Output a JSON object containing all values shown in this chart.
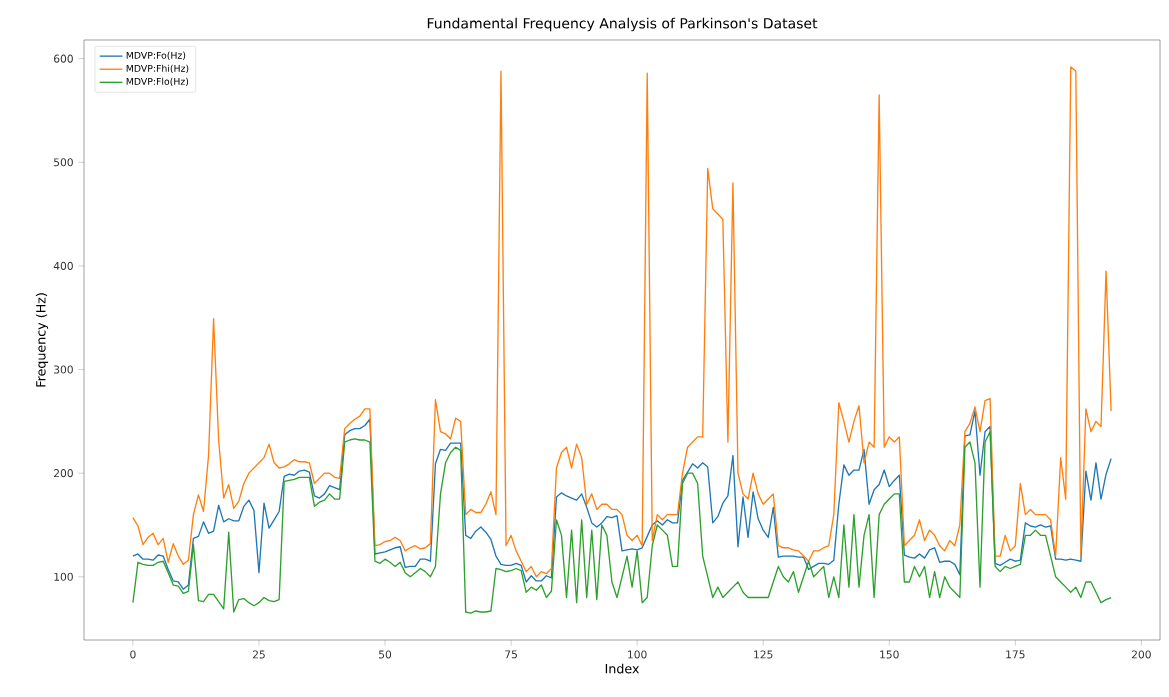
{
  "chart_data": {
    "type": "line",
    "title": "Fundamental Frequency Analysis of Parkinson's Dataset",
    "xlabel": "Index",
    "ylabel": "Frequency (Hz)",
    "x": [
      0,
      1,
      2,
      3,
      4,
      5,
      6,
      7,
      8,
      9,
      10,
      11,
      12,
      13,
      14,
      15,
      16,
      17,
      18,
      19,
      20,
      21,
      22,
      23,
      24,
      25,
      26,
      27,
      28,
      29,
      30,
      31,
      32,
      33,
      34,
      35,
      36,
      37,
      38,
      39,
      40,
      41,
      42,
      43,
      44,
      45,
      46,
      47,
      48,
      49,
      50,
      51,
      52,
      53,
      54,
      55,
      56,
      57,
      58,
      59,
      60,
      61,
      62,
      63,
      64,
      65,
      66,
      67,
      68,
      69,
      70,
      71,
      72,
      73,
      74,
      75,
      76,
      77,
      78,
      79,
      80,
      81,
      82,
      83,
      84,
      85,
      86,
      87,
      88,
      89,
      90,
      91,
      92,
      93,
      94,
      95,
      96,
      97,
      98,
      99,
      100,
      101,
      102,
      103,
      104,
      105,
      106,
      107,
      108,
      109,
      110,
      111,
      112,
      113,
      114,
      115,
      116,
      117,
      118,
      119,
      120,
      121,
      122,
      123,
      124,
      125,
      126,
      127,
      128,
      129,
      130,
      131,
      132,
      133,
      134,
      135,
      136,
      137,
      138,
      139,
      140,
      141,
      142,
      143,
      144,
      145,
      146,
      147,
      148,
      149,
      150,
      151,
      152,
      153,
      154,
      155,
      156,
      157,
      158,
      159,
      160,
      161,
      162,
      163,
      164,
      165,
      166,
      167,
      168,
      169,
      170,
      171,
      172,
      173,
      174,
      175,
      176,
      177,
      178,
      179,
      180,
      181,
      182,
      183,
      184,
      185,
      186,
      187,
      188,
      189,
      190,
      191,
      192,
      193,
      194
    ],
    "series": [
      {
        "name": "MDVP:Fo(Hz)",
        "color": "#1f77b4",
        "values": [
          120,
          122,
          117,
          117,
          116,
          121,
          120,
          107,
          96,
          95,
          88,
          92,
          137,
          139,
          153,
          142,
          144,
          169,
          153,
          156,
          154,
          154,
          168,
          174,
          164,
          104,
          171,
          147,
          155,
          163,
          197,
          199,
          198,
          202,
          203,
          201,
          178,
          176,
          180,
          188,
          186,
          184,
          237,
          241,
          243,
          243,
          246,
          252,
          122,
          123,
          124,
          126,
          128,
          129,
          109,
          110,
          110,
          117,
          117,
          115,
          209,
          223,
          222,
          229,
          229,
          229,
          140,
          137,
          144,
          148,
          143,
          136,
          120,
          112,
          111,
          111,
          113,
          111,
          95,
          101,
          96,
          96,
          101,
          99,
          177,
          181,
          178,
          176,
          174,
          180,
          167,
          152,
          148,
          152,
          158,
          157,
          159,
          125,
          126,
          127,
          126,
          128,
          139,
          150,
          154,
          150,
          155,
          152,
          152,
          193,
          201,
          209,
          205,
          210,
          206,
          152,
          158,
          171,
          178,
          217,
          129,
          177,
          138,
          182,
          156,
          145,
          138,
          167,
          119,
          120,
          120,
          120,
          119,
          119,
          107,
          110,
          113,
          113,
          112,
          116,
          170,
          208,
          198,
          203,
          203,
          223,
          170,
          184,
          189,
          203,
          187,
          193,
          198,
          121,
          119,
          118,
          122,
          118,
          126,
          128,
          114,
          115,
          115,
          112,
          102,
          236,
          237,
          260,
          198,
          240,
          245,
          113,
          111,
          114,
          117,
          115,
          116,
          152,
          149,
          148,
          150,
          148,
          149,
          117,
          117,
          116,
          117,
          116,
          115,
          202,
          174,
          210,
          175,
          199,
          214
        ]
      },
      {
        "name": "MDVP:Fhi(Hz)",
        "color": "#ff7f0e",
        "values": [
          157,
          149,
          131,
          138,
          142,
          131,
          137,
          114,
          132,
          120,
          112,
          116,
          160,
          179,
          163,
          217,
          349,
          232,
          176,
          189,
          166,
          173,
          190,
          200,
          205,
          210,
          215,
          228,
          210,
          205,
          206,
          209,
          213,
          211,
          211,
          210,
          190,
          195,
          200,
          200,
          196,
          195,
          243,
          248,
          252,
          255,
          262,
          262,
          130,
          131,
          134,
          135,
          138,
          135,
          125,
          128,
          130,
          127,
          128,
          132,
          271,
          240,
          238,
          233,
          253,
          250,
          160,
          165,
          162,
          162,
          170,
          182,
          160,
          588,
          130,
          140,
          125,
          115,
          105,
          110,
          100,
          105,
          103,
          108,
          205,
          220,
          225,
          205,
          228,
          215,
          170,
          180,
          165,
          170,
          170,
          165,
          165,
          160,
          140,
          135,
          140,
          130,
          586,
          135,
          160,
          155,
          160,
          160,
          160,
          200,
          225,
          230,
          235,
          235,
          494,
          455,
          450,
          445,
          230,
          480,
          200,
          180,
          175,
          200,
          180,
          170,
          175,
          180,
          130,
          128,
          128,
          126,
          125,
          120,
          115,
          125,
          125,
          128,
          130,
          160,
          268,
          250,
          230,
          250,
          265,
          210,
          230,
          225,
          565,
          225,
          235,
          230,
          235,
          130,
          135,
          140,
          155,
          135,
          145,
          140,
          130,
          125,
          135,
          130,
          150,
          240,
          248,
          264,
          240,
          270,
          272,
          120,
          120,
          140,
          125,
          130,
          190,
          160,
          165,
          160,
          160,
          160,
          155,
          120,
          215,
          175,
          592,
          588,
          120,
          262,
          240,
          250,
          245,
          395,
          260
        ]
      },
      {
        "name": "MDVP:Flo(Hz)",
        "color": "#2ca02c",
        "values": [
          75,
          114,
          112,
          111,
          111,
          114,
          115,
          104,
          92,
          91,
          84,
          86,
          131,
          77,
          76,
          83,
          83,
          76,
          69,
          143,
          66,
          78,
          79,
          75,
          72,
          75,
          80,
          77,
          76,
          78,
          192,
          193,
          194,
          196,
          196,
          196,
          168,
          172,
          174,
          180,
          175,
          175,
          230,
          232,
          233,
          232,
          232,
          230,
          115,
          113,
          117,
          114,
          110,
          114,
          104,
          100,
          104,
          108,
          105,
          100,
          110,
          180,
          210,
          220,
          225,
          222,
          66,
          65,
          67,
          66,
          66,
          67,
          108,
          107,
          105,
          106,
          108,
          106,
          85,
          90,
          87,
          92,
          80,
          86,
          155,
          140,
          80,
          145,
          75,
          155,
          80,
          145,
          78,
          150,
          140,
          95,
          80,
          100,
          120,
          90,
          125,
          75,
          80,
          130,
          150,
          145,
          140,
          110,
          110,
          190,
          200,
          200,
          190,
          120,
          100,
          80,
          90,
          80,
          85,
          90,
          95,
          85,
          80,
          80,
          80,
          80,
          80,
          95,
          110,
          100,
          95,
          105,
          85,
          100,
          115,
          100,
          105,
          110,
          80,
          100,
          80,
          150,
          90,
          160,
          90,
          140,
          160,
          80,
          160,
          170,
          175,
          180,
          180,
          95,
          95,
          110,
          100,
          110,
          80,
          105,
          80,
          100,
          90,
          85,
          80,
          225,
          230,
          210,
          90,
          230,
          240,
          110,
          105,
          110,
          108,
          110,
          112,
          140,
          140,
          145,
          140,
          140,
          120,
          100,
          95,
          90,
          85,
          90,
          80,
          95,
          95,
          85,
          75,
          78,
          80
        ]
      }
    ],
    "xlim": [
      -9.7,
      203.7
    ],
    "ylim": [
      39,
      618
    ],
    "xticks": [
      0,
      25,
      50,
      75,
      100,
      125,
      150,
      175,
      200
    ],
    "yticks": [
      100,
      200,
      300,
      400,
      500,
      600
    ],
    "grid": false,
    "legend": "top left",
    "marker": "none",
    "line_style": "solid"
  }
}
